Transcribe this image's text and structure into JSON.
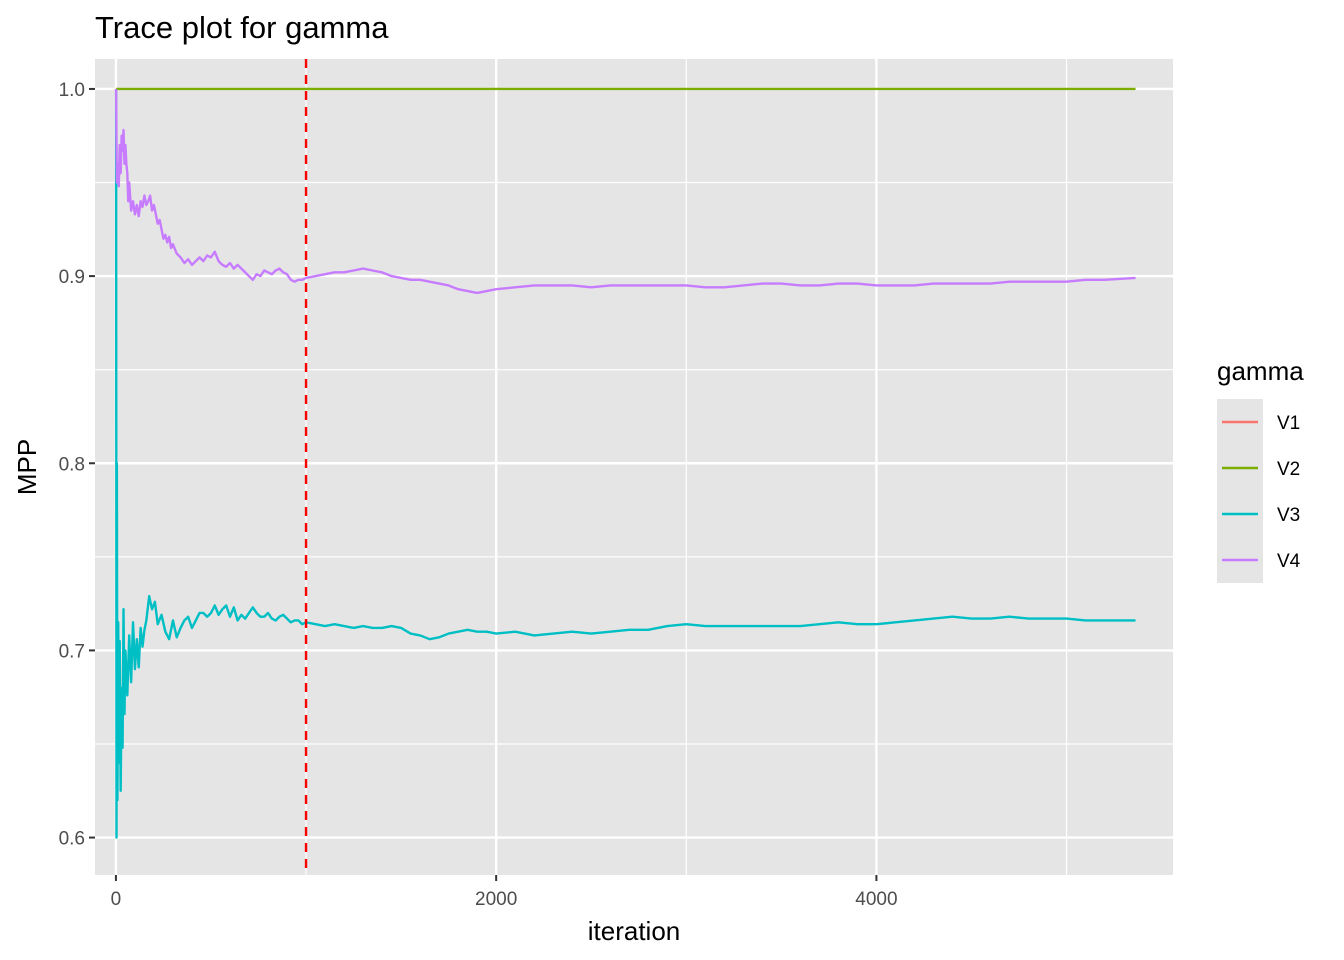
{
  "chart_data": {
    "type": "line",
    "title": "Trace plot for gamma",
    "xlabel": "iteration",
    "ylabel": "MPP",
    "xlim": [
      -110,
      5560
    ],
    "ylim": [
      0.58,
      1.016
    ],
    "x_major_ticks": [
      0,
      2000,
      4000
    ],
    "x_minor_ticks": [
      1000,
      3000,
      5000
    ],
    "y_major_ticks": [
      0.6,
      0.7,
      0.8,
      0.9,
      1.0
    ],
    "y_minor_ticks": [
      0.65,
      0.75,
      0.85,
      0.95
    ],
    "x_tick_labels": [
      "0",
      "2000",
      "4000"
    ],
    "y_tick_labels": [
      "0.6",
      "0.7",
      "0.8",
      "0.9",
      "1.0"
    ],
    "grid": true,
    "background": "#e5e5e5",
    "grid_color": "#ffffff",
    "legend": {
      "title": "gamma",
      "position": "right",
      "entries": [
        "V1",
        "V2",
        "V3",
        "V4"
      ]
    },
    "vline": {
      "x": 1000,
      "color": "#ff0000",
      "style": "dashed"
    },
    "series": [
      {
        "name": "V1",
        "color": "#f8766d",
        "points": []
      },
      {
        "name": "V2",
        "color": "#7cae00",
        "points": [
          [
            1,
            1.0
          ],
          [
            5363,
            1.0
          ]
        ]
      },
      {
        "name": "V3",
        "color": "#00bfc4",
        "points": [
          [
            1,
            1.0
          ],
          [
            3,
            0.6
          ],
          [
            5,
            0.8
          ],
          [
            8,
            0.62
          ],
          [
            12,
            0.715
          ],
          [
            16,
            0.64
          ],
          [
            20,
            0.705
          ],
          [
            25,
            0.625
          ],
          [
            30,
            0.68
          ],
          [
            35,
            0.648
          ],
          [
            40,
            0.722
          ],
          [
            45,
            0.666
          ],
          [
            50,
            0.7
          ],
          [
            60,
            0.676
          ],
          [
            70,
            0.708
          ],
          [
            80,
            0.683
          ],
          [
            90,
            0.715
          ],
          [
            100,
            0.69
          ],
          [
            110,
            0.706
          ],
          [
            120,
            0.691
          ],
          [
            130,
            0.712
          ],
          [
            140,
            0.702
          ],
          [
            150,
            0.711
          ],
          [
            160,
            0.716
          ],
          [
            175,
            0.729
          ],
          [
            190,
            0.722
          ],
          [
            205,
            0.726
          ],
          [
            220,
            0.714
          ],
          [
            240,
            0.719
          ],
          [
            260,
            0.71
          ],
          [
            280,
            0.706
          ],
          [
            300,
            0.716
          ],
          [
            320,
            0.707
          ],
          [
            340,
            0.712
          ],
          [
            360,
            0.716
          ],
          [
            380,
            0.718
          ],
          [
            400,
            0.712
          ],
          [
            420,
            0.716
          ],
          [
            440,
            0.72
          ],
          [
            460,
            0.72
          ],
          [
            480,
            0.718
          ],
          [
            500,
            0.72
          ],
          [
            520,
            0.724
          ],
          [
            540,
            0.719
          ],
          [
            560,
            0.722
          ],
          [
            580,
            0.724
          ],
          [
            600,
            0.718
          ],
          [
            620,
            0.723
          ],
          [
            640,
            0.716
          ],
          [
            660,
            0.719
          ],
          [
            680,
            0.717
          ],
          [
            700,
            0.72
          ],
          [
            720,
            0.723
          ],
          [
            740,
            0.72
          ],
          [
            760,
            0.718
          ],
          [
            780,
            0.718
          ],
          [
            800,
            0.72
          ],
          [
            820,
            0.717
          ],
          [
            840,
            0.716
          ],
          [
            860,
            0.718
          ],
          [
            880,
            0.719
          ],
          [
            900,
            0.717
          ],
          [
            920,
            0.715
          ],
          [
            940,
            0.716
          ],
          [
            960,
            0.716
          ],
          [
            980,
            0.714
          ],
          [
            1000,
            0.715
          ],
          [
            1050,
            0.714
          ],
          [
            1100,
            0.713
          ],
          [
            1150,
            0.714
          ],
          [
            1200,
            0.713
          ],
          [
            1250,
            0.712
          ],
          [
            1300,
            0.713
          ],
          [
            1350,
            0.712
          ],
          [
            1400,
            0.712
          ],
          [
            1450,
            0.713
          ],
          [
            1500,
            0.712
          ],
          [
            1550,
            0.709
          ],
          [
            1600,
            0.708
          ],
          [
            1650,
            0.706
          ],
          [
            1700,
            0.707
          ],
          [
            1750,
            0.709
          ],
          [
            1800,
            0.71
          ],
          [
            1850,
            0.711
          ],
          [
            1900,
            0.71
          ],
          [
            1950,
            0.71
          ],
          [
            2000,
            0.709
          ],
          [
            2100,
            0.71
          ],
          [
            2200,
            0.708
          ],
          [
            2300,
            0.709
          ],
          [
            2400,
            0.71
          ],
          [
            2500,
            0.709
          ],
          [
            2600,
            0.71
          ],
          [
            2700,
            0.711
          ],
          [
            2800,
            0.711
          ],
          [
            2900,
            0.713
          ],
          [
            3000,
            0.714
          ],
          [
            3100,
            0.713
          ],
          [
            3200,
            0.713
          ],
          [
            3300,
            0.713
          ],
          [
            3400,
            0.713
          ],
          [
            3500,
            0.713
          ],
          [
            3600,
            0.713
          ],
          [
            3700,
            0.714
          ],
          [
            3800,
            0.715
          ],
          [
            3900,
            0.714
          ],
          [
            4000,
            0.714
          ],
          [
            4100,
            0.715
          ],
          [
            4200,
            0.716
          ],
          [
            4300,
            0.717
          ],
          [
            4400,
            0.718
          ],
          [
            4500,
            0.717
          ],
          [
            4600,
            0.717
          ],
          [
            4700,
            0.718
          ],
          [
            4800,
            0.717
          ],
          [
            4900,
            0.717
          ],
          [
            5000,
            0.717
          ],
          [
            5100,
            0.716
          ],
          [
            5200,
            0.716
          ],
          [
            5363,
            0.716
          ]
        ]
      },
      {
        "name": "V4",
        "color": "#c77cff",
        "points": [
          [
            1,
            1.0
          ],
          [
            5,
            0.95
          ],
          [
            10,
            0.96
          ],
          [
            15,
            0.948
          ],
          [
            20,
            0.97
          ],
          [
            25,
            0.955
          ],
          [
            30,
            0.975
          ],
          [
            35,
            0.967
          ],
          [
            40,
            0.978
          ],
          [
            45,
            0.96
          ],
          [
            50,
            0.97
          ],
          [
            55,
            0.96
          ],
          [
            60,
            0.955
          ],
          [
            65,
            0.94
          ],
          [
            70,
            0.95
          ],
          [
            80,
            0.935
          ],
          [
            90,
            0.94
          ],
          [
            100,
            0.933
          ],
          [
            110,
            0.938
          ],
          [
            120,
            0.932
          ],
          [
            130,
            0.94
          ],
          [
            140,
            0.937
          ],
          [
            150,
            0.943
          ],
          [
            160,
            0.938
          ],
          [
            170,
            0.94
          ],
          [
            180,
            0.943
          ],
          [
            190,
            0.935
          ],
          [
            200,
            0.938
          ],
          [
            210,
            0.933
          ],
          [
            220,
            0.928
          ],
          [
            230,
            0.93
          ],
          [
            240,
            0.925
          ],
          [
            250,
            0.92
          ],
          [
            260,
            0.922
          ],
          [
            270,
            0.918
          ],
          [
            280,
            0.921
          ],
          [
            290,
            0.915
          ],
          [
            300,
            0.917
          ],
          [
            320,
            0.912
          ],
          [
            340,
            0.91
          ],
          [
            360,
            0.907
          ],
          [
            380,
            0.909
          ],
          [
            400,
            0.906
          ],
          [
            420,
            0.908
          ],
          [
            440,
            0.91
          ],
          [
            460,
            0.908
          ],
          [
            480,
            0.911
          ],
          [
            500,
            0.91
          ],
          [
            520,
            0.913
          ],
          [
            540,
            0.908
          ],
          [
            560,
            0.906
          ],
          [
            580,
            0.905
          ],
          [
            600,
            0.907
          ],
          [
            620,
            0.904
          ],
          [
            640,
            0.906
          ],
          [
            660,
            0.904
          ],
          [
            680,
            0.902
          ],
          [
            700,
            0.9
          ],
          [
            720,
            0.898
          ],
          [
            740,
            0.901
          ],
          [
            760,
            0.9
          ],
          [
            780,
            0.903
          ],
          [
            800,
            0.902
          ],
          [
            820,
            0.901
          ],
          [
            840,
            0.903
          ],
          [
            860,
            0.904
          ],
          [
            880,
            0.902
          ],
          [
            900,
            0.901
          ],
          [
            920,
            0.898
          ],
          [
            940,
            0.897
          ],
          [
            960,
            0.898
          ],
          [
            980,
            0.898
          ],
          [
            1000,
            0.899
          ],
          [
            1050,
            0.9
          ],
          [
            1100,
            0.901
          ],
          [
            1150,
            0.902
          ],
          [
            1200,
            0.902
          ],
          [
            1250,
            0.903
          ],
          [
            1300,
            0.904
          ],
          [
            1350,
            0.903
          ],
          [
            1400,
            0.902
          ],
          [
            1450,
            0.9
          ],
          [
            1500,
            0.899
          ],
          [
            1550,
            0.898
          ],
          [
            1600,
            0.898
          ],
          [
            1650,
            0.897
          ],
          [
            1700,
            0.896
          ],
          [
            1750,
            0.895
          ],
          [
            1800,
            0.893
          ],
          [
            1850,
            0.892
          ],
          [
            1900,
            0.891
          ],
          [
            1950,
            0.892
          ],
          [
            2000,
            0.893
          ],
          [
            2100,
            0.894
          ],
          [
            2200,
            0.895
          ],
          [
            2300,
            0.895
          ],
          [
            2400,
            0.895
          ],
          [
            2500,
            0.894
          ],
          [
            2600,
            0.895
          ],
          [
            2700,
            0.895
          ],
          [
            2800,
            0.895
          ],
          [
            2900,
            0.895
          ],
          [
            3000,
            0.895
          ],
          [
            3100,
            0.894
          ],
          [
            3200,
            0.894
          ],
          [
            3300,
            0.895
          ],
          [
            3400,
            0.896
          ],
          [
            3500,
            0.896
          ],
          [
            3600,
            0.895
          ],
          [
            3700,
            0.895
          ],
          [
            3800,
            0.896
          ],
          [
            3900,
            0.896
          ],
          [
            4000,
            0.895
          ],
          [
            4100,
            0.895
          ],
          [
            4200,
            0.895
          ],
          [
            4300,
            0.896
          ],
          [
            4400,
            0.896
          ],
          [
            4500,
            0.896
          ],
          [
            4600,
            0.896
          ],
          [
            4700,
            0.897
          ],
          [
            4800,
            0.897
          ],
          [
            4900,
            0.897
          ],
          [
            5000,
            0.897
          ],
          [
            5100,
            0.898
          ],
          [
            5200,
            0.898
          ],
          [
            5363,
            0.899
          ]
        ]
      }
    ]
  }
}
